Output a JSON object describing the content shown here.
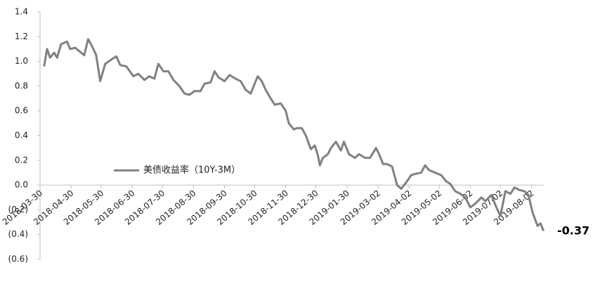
{
  "chart_data": {
    "type": "line",
    "x": [
      "2018-04-03",
      "2018-04-06",
      "2018-04-09",
      "2018-04-13",
      "2018-04-16",
      "2018-04-20",
      "2018-04-26",
      "2018-04-29",
      "2018-05-04",
      "2018-05-10",
      "2018-05-13",
      "2018-05-17",
      "2018-05-21",
      "2018-05-25",
      "2018-05-29",
      "2018-06-03",
      "2018-06-10",
      "2018-06-14",
      "2018-06-18",
      "2018-06-24",
      "2018-07-01",
      "2018-07-06",
      "2018-07-12",
      "2018-07-17",
      "2018-07-22",
      "2018-07-26",
      "2018-07-31",
      "2018-08-05",
      "2018-08-10",
      "2018-08-16",
      "2018-08-21",
      "2018-08-26",
      "2018-08-31",
      "2018-09-06",
      "2018-09-10",
      "2018-09-16",
      "2018-09-20",
      "2018-09-24",
      "2018-09-30",
      "2018-10-05",
      "2018-10-11",
      "2018-10-16",
      "2018-10-21",
      "2018-10-26",
      "2018-11-02",
      "2018-11-06",
      "2018-11-10",
      "2018-11-15",
      "2018-11-19",
      "2018-11-25",
      "2018-11-30",
      "2018-12-03",
      "2018-12-08",
      "2018-12-11",
      "2018-12-16",
      "2018-12-20",
      "2018-12-25",
      "2018-12-29",
      "2019-01-01",
      "2019-01-03",
      "2019-01-06",
      "2019-01-11",
      "2019-01-14",
      "2019-01-19",
      "2019-01-24",
      "2019-01-27",
      "2019-02-01",
      "2019-02-07",
      "2019-02-11",
      "2019-02-17",
      "2019-02-22",
      "2019-02-28",
      "2019-03-03",
      "2019-03-07",
      "2019-03-11",
      "2019-03-16",
      "2019-03-21",
      "2019-03-25",
      "2019-03-30",
      "2019-04-04",
      "2019-04-08",
      "2019-04-14",
      "2019-04-18",
      "2019-04-22",
      "2019-04-28",
      "2019-05-04",
      "2019-05-09",
      "2019-05-13",
      "2019-05-18",
      "2019-05-23",
      "2019-05-28",
      "2019-06-02",
      "2019-06-07",
      "2019-06-13",
      "2019-06-17",
      "2019-06-23",
      "2019-06-28",
      "2019-07-02",
      "2019-07-07",
      "2019-07-12",
      "2019-07-16",
      "2019-07-21",
      "2019-07-26",
      "2019-07-30",
      "2019-08-03",
      "2019-08-08",
      "2019-08-11",
      "2019-08-14"
    ],
    "series": [
      {
        "name": "美债收益率（10Y-3M）",
        "color": "#808080",
        "values": [
          0.96,
          1.1,
          1.03,
          1.07,
          1.03,
          1.14,
          1.16,
          1.1,
          1.11,
          1.07,
          1.05,
          1.18,
          1.12,
          1.05,
          0.84,
          0.98,
          1.02,
          1.04,
          0.97,
          0.96,
          0.88,
          0.9,
          0.85,
          0.88,
          0.86,
          0.98,
          0.92,
          0.92,
          0.85,
          0.8,
          0.74,
          0.73,
          0.76,
          0.76,
          0.82,
          0.83,
          0.92,
          0.87,
          0.84,
          0.89,
          0.86,
          0.84,
          0.77,
          0.74,
          0.88,
          0.84,
          0.77,
          0.7,
          0.65,
          0.66,
          0.6,
          0.5,
          0.45,
          0.46,
          0.46,
          0.4,
          0.29,
          0.32,
          0.24,
          0.16,
          0.22,
          0.25,
          0.3,
          0.35,
          0.28,
          0.35,
          0.25,
          0.22,
          0.25,
          0.22,
          0.22,
          0.3,
          0.25,
          0.17,
          0.17,
          0.15,
          0.0,
          -0.03,
          0.02,
          0.08,
          0.09,
          0.1,
          0.16,
          0.12,
          0.1,
          0.08,
          0.03,
          0.01,
          -0.05,
          -0.07,
          -0.1,
          -0.18,
          -0.15,
          -0.1,
          -0.13,
          -0.08,
          -0.18,
          -0.25,
          -0.05,
          -0.07,
          -0.02,
          -0.04,
          -0.05,
          -0.08,
          -0.22,
          -0.33,
          -0.31,
          -0.37
        ]
      }
    ],
    "xlim": [
      "2018-03-30",
      "2019-08-15"
    ],
    "xticks": [
      "2018-03-30",
      "2018-04-30",
      "2018-05-30",
      "2018-06-30",
      "2018-07-30",
      "2018-08-30",
      "2018-09-30",
      "2018-10-30",
      "2018-11-30",
      "2018-12-30",
      "2019-01-30",
      "2019-03-02",
      "2019-04-02",
      "2019-05-02",
      "2019-06-02",
      "2019-07-02",
      "2019-08-02"
    ],
    "ylim": [
      -0.6,
      1.4
    ],
    "yticks": [
      1.4,
      1.2,
      {
        "value": 1,
        "label": "1.0"
      },
      0.8,
      0.6,
      0.4,
      0.2,
      {
        "value": 0,
        "label": "0.0"
      },
      {
        "value": -0.2,
        "label": "(0.2)"
      },
      {
        "value": -0.4,
        "label": "(0.4)"
      },
      {
        "value": -0.6,
        "label": "(0.6)"
      }
    ],
    "end_label": "-0.37",
    "legend": "lower left",
    "grid": false
  }
}
